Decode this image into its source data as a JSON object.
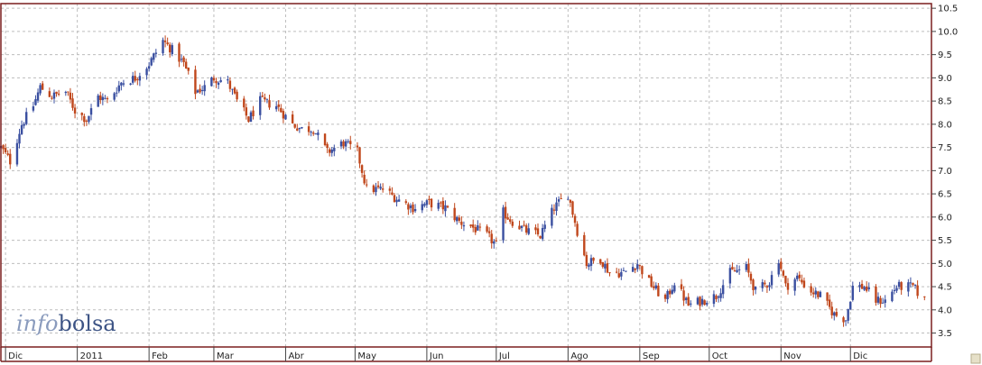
{
  "chart_data": {
    "type": "candlestick",
    "title": "",
    "xlabel": "",
    "ylabel": "",
    "ylim": [
      3.2,
      10.6
    ],
    "yticks": [
      "3.5",
      "4.0",
      "4.5",
      "5.0",
      "5.5",
      "6.0",
      "6.5",
      "7.0",
      "7.5",
      "8.0",
      "8.5",
      "9.0",
      "9.5",
      "10.0",
      "10.5"
    ],
    "ytick_values": [
      3.5,
      4.0,
      4.5,
      5.0,
      5.5,
      6.0,
      6.5,
      7.0,
      7.5,
      8.0,
      8.5,
      9.0,
      9.5,
      10.0,
      10.5
    ],
    "grid": true,
    "x_range": [
      "2010-11-29",
      "2012-01-05"
    ],
    "month_ticks": [
      {
        "label": "Dic",
        "date": "2010-12-01"
      },
      {
        "label": "2011",
        "date": "2011-01-01"
      },
      {
        "label": "Feb",
        "date": "2011-02-01"
      },
      {
        "label": "Mar",
        "date": "2011-03-01"
      },
      {
        "label": "Abr",
        "date": "2011-04-01"
      },
      {
        "label": "May",
        "date": "2011-05-01"
      },
      {
        "label": "Jun",
        "date": "2011-06-01"
      },
      {
        "label": "Jul",
        "date": "2011-07-01"
      },
      {
        "label": "Ago",
        "date": "2011-08-01"
      },
      {
        "label": "Sep",
        "date": "2011-09-01"
      },
      {
        "label": "Oct",
        "date": "2011-10-01"
      },
      {
        "label": "Nov",
        "date": "2011-11-01"
      },
      {
        "label": "Dic",
        "date": "2011-12-01"
      }
    ],
    "close_path": [
      [
        "2010-11-29",
        7.5
      ],
      [
        "2010-12-03",
        7.2
      ],
      [
        "2010-12-08",
        8.0
      ],
      [
        "2010-12-13",
        8.4
      ],
      [
        "2010-12-16",
        8.8
      ],
      [
        "2010-12-21",
        8.6
      ],
      [
        "2010-12-27",
        8.7
      ],
      [
        "2010-12-31",
        8.3
      ],
      [
        "2011-01-05",
        8.1
      ],
      [
        "2011-01-10",
        8.6
      ],
      [
        "2011-01-14",
        8.5
      ],
      [
        "2011-01-20",
        8.9
      ],
      [
        "2011-01-26",
        9.0
      ],
      [
        "2011-02-01",
        9.3
      ],
      [
        "2011-02-07",
        9.8
      ],
      [
        "2011-02-11",
        9.6
      ],
      [
        "2011-02-16",
        9.3
      ],
      [
        "2011-02-21",
        8.7
      ],
      [
        "2011-02-25",
        8.8
      ],
      [
        "2011-03-01",
        9.0
      ],
      [
        "2011-03-07",
        8.9
      ],
      [
        "2011-03-11",
        8.5
      ],
      [
        "2011-03-16",
        8.1
      ],
      [
        "2011-03-21",
        8.5
      ],
      [
        "2011-03-28",
        8.4
      ],
      [
        "2011-04-04",
        8.0
      ],
      [
        "2011-04-08",
        7.9
      ],
      [
        "2011-04-13",
        7.9
      ],
      [
        "2011-04-19",
        7.4
      ],
      [
        "2011-04-26",
        7.6
      ],
      [
        "2011-05-02",
        7.4
      ],
      [
        "2011-05-06",
        6.6
      ],
      [
        "2011-05-13",
        6.6
      ],
      [
        "2011-05-19",
        6.4
      ],
      [
        "2011-05-26",
        6.2
      ],
      [
        "2011-06-02",
        6.3
      ],
      [
        "2011-06-09",
        6.2
      ],
      [
        "2011-06-15",
        5.9
      ],
      [
        "2011-06-20",
        5.8
      ],
      [
        "2011-06-27",
        5.6
      ],
      [
        "2011-07-01",
        5.4
      ],
      [
        "2011-07-04",
        6.1
      ],
      [
        "2011-07-08",
        5.9
      ],
      [
        "2011-07-14",
        5.7
      ],
      [
        "2011-07-20",
        5.6
      ],
      [
        "2011-07-26",
        6.2
      ],
      [
        "2011-08-01",
        6.5
      ],
      [
        "2011-08-05",
        5.7
      ],
      [
        "2011-08-09",
        5.0
      ],
      [
        "2011-08-15",
        5.1
      ],
      [
        "2011-08-19",
        4.8
      ],
      [
        "2011-08-25",
        4.8
      ],
      [
        "2011-08-31",
        5.0
      ],
      [
        "2011-09-05",
        4.6
      ],
      [
        "2011-09-12",
        4.2
      ],
      [
        "2011-09-16",
        4.6
      ],
      [
        "2011-09-22",
        4.1
      ],
      [
        "2011-09-28",
        4.2
      ],
      [
        "2011-10-04",
        4.3
      ],
      [
        "2011-10-10",
        4.8
      ],
      [
        "2011-10-17",
        4.9
      ],
      [
        "2011-10-21",
        4.4
      ],
      [
        "2011-10-27",
        4.6
      ],
      [
        "2011-10-31",
        5.1
      ],
      [
        "2011-11-03",
        4.5
      ],
      [
        "2011-11-08",
        4.7
      ],
      [
        "2011-11-14",
        4.4
      ],
      [
        "2011-11-18",
        4.3
      ],
      [
        "2011-11-24",
        3.9
      ],
      [
        "2011-11-29",
        3.8
      ],
      [
        "2011-12-02",
        4.5
      ],
      [
        "2011-12-07",
        4.5
      ],
      [
        "2011-12-12",
        4.2
      ],
      [
        "2011-12-16",
        4.2
      ],
      [
        "2011-12-21",
        4.5
      ],
      [
        "2011-12-28",
        4.5
      ],
      [
        "2012-01-02",
        4.2
      ]
    ]
  },
  "logo": {
    "part1": "info",
    "part2": "bolsa"
  },
  "colors": {
    "up": "#3a4fa0",
    "down": "#c0471c",
    "frame": "#7a1f1f",
    "grid": "#bdbdbd",
    "logo_light": "#8a9bbd",
    "logo_dark": "#3d5485"
  }
}
